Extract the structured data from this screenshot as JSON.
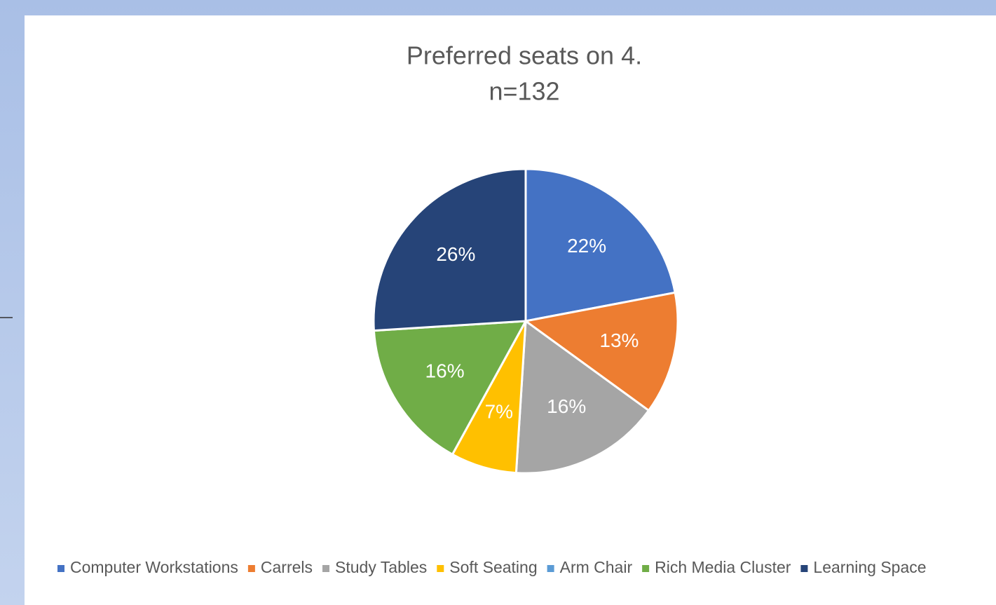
{
  "chart_data": {
    "type": "pie",
    "title": "Preferred seats on 4.",
    "subtitle": "n=132",
    "categories": [
      "Computer Workstations",
      "Carrels",
      "Study Tables",
      "Soft Seating",
      "Arm Chair",
      "Rich Media Cluster",
      "Learning Space"
    ],
    "values": [
      22,
      13,
      16,
      7,
      0,
      16,
      26
    ],
    "value_labels": [
      "22%",
      "13%",
      "16%",
      "7%",
      null,
      "16%",
      "26%"
    ],
    "colors": [
      "#4472c4",
      "#ed7d31",
      "#a5a5a5",
      "#ffc000",
      "#5b9bd5",
      "#70ad47",
      "#264478"
    ],
    "legend": "bottom"
  }
}
